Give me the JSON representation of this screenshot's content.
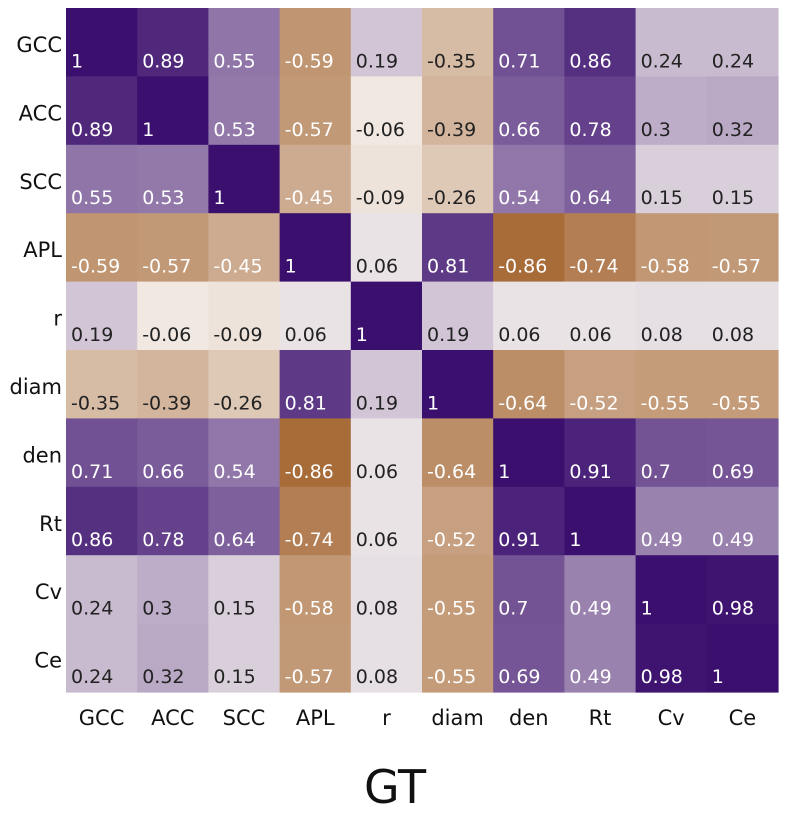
{
  "chart_data": {
    "type": "heatmap",
    "title": "GT",
    "row_labels": [
      "GCC",
      "ACC",
      "SCC",
      "APL",
      "r",
      "diam",
      "den",
      "Rt",
      "Cv",
      "Ce"
    ],
    "col_labels": [
      "GCC",
      "ACC",
      "SCC",
      "APL",
      "r",
      "diam",
      "den",
      "Rt",
      "Cv",
      "Ce"
    ],
    "values": [
      [
        1,
        0.89,
        0.55,
        -0.59,
        0.19,
        -0.35,
        0.71,
        0.86,
        0.24,
        0.24
      ],
      [
        0.89,
        1,
        0.53,
        -0.57,
        -0.06,
        -0.39,
        0.66,
        0.78,
        0.3,
        0.32
      ],
      [
        0.55,
        0.53,
        1,
        -0.45,
        -0.09,
        -0.26,
        0.54,
        0.64,
        0.15,
        0.15
      ],
      [
        -0.59,
        -0.57,
        -0.45,
        1,
        0.06,
        0.81,
        -0.86,
        -0.74,
        -0.58,
        -0.57
      ],
      [
        0.19,
        -0.06,
        -0.09,
        0.06,
        1,
        0.19,
        0.06,
        0.06,
        0.08,
        0.08
      ],
      [
        -0.35,
        -0.39,
        -0.26,
        0.81,
        0.19,
        1,
        -0.64,
        -0.52,
        -0.55,
        -0.55
      ],
      [
        0.71,
        0.66,
        0.54,
        -0.86,
        0.06,
        -0.64,
        1,
        0.91,
        0.7,
        0.69
      ],
      [
        0.86,
        0.78,
        0.64,
        -0.74,
        0.06,
        -0.52,
        0.91,
        1,
        0.49,
        0.49
      ],
      [
        0.24,
        0.3,
        0.15,
        -0.58,
        0.08,
        -0.55,
        0.7,
        0.49,
        1,
        0.98
      ],
      [
        0.24,
        0.32,
        0.15,
        -0.57,
        0.08,
        -0.55,
        0.69,
        0.49,
        0.98,
        1
      ]
    ],
    "value_range": [
      -1,
      1
    ],
    "colors": {
      "positive": "#3b0f6e",
      "neutral": "#f5f1ee",
      "negative": "#9c561c",
      "label_light": "#ffffff",
      "label_dark": "#222222"
    }
  }
}
